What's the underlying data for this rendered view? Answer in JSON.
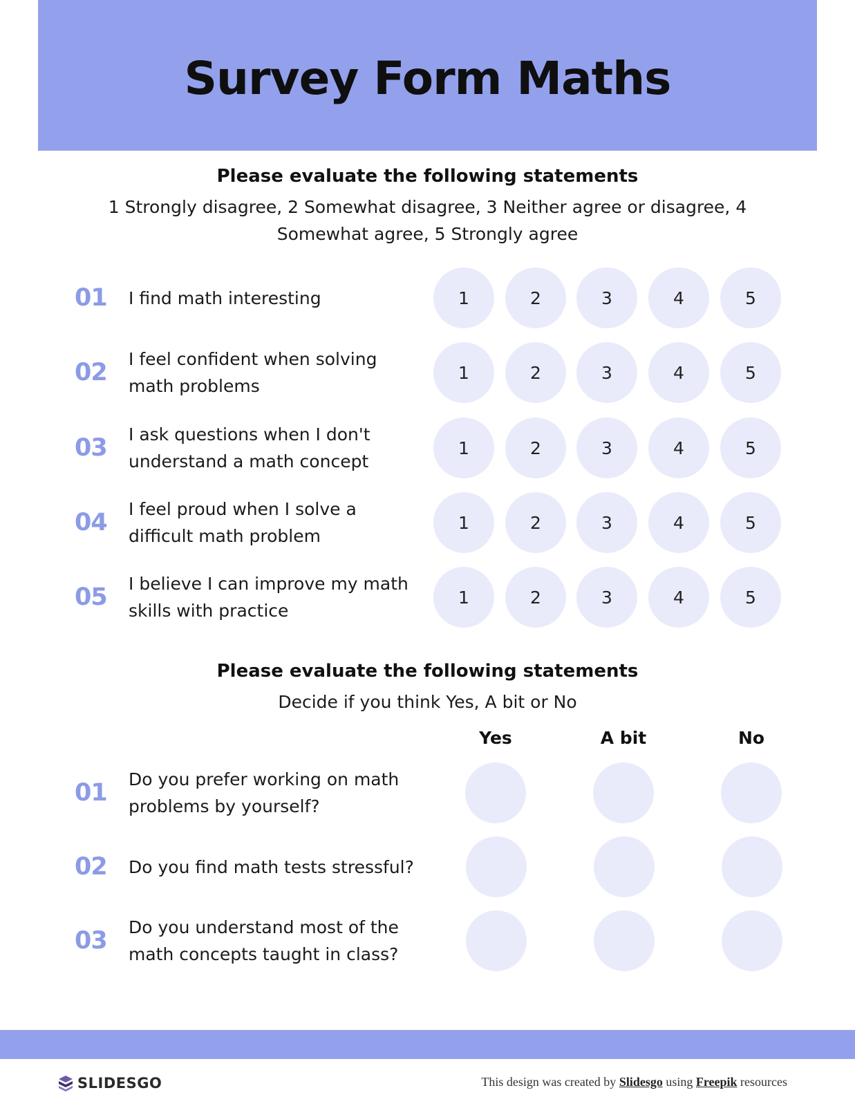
{
  "header": {
    "title": "Survey Form Maths"
  },
  "section1": {
    "heading": "Please evaluate the following statements",
    "description": "1 Strongly disagree, 2 Somewhat disagree, 3 Neither agree or disagree, 4 Somewhat agree, 5 Strongly agree",
    "scale": [
      "1",
      "2",
      "3",
      "4",
      "5"
    ],
    "items": [
      {
        "number": "01",
        "statement": "I find math interesting"
      },
      {
        "number": "02",
        "statement": "I feel confident when solving math problems"
      },
      {
        "number": "03",
        "statement": "I ask questions when I don't understand a math concept"
      },
      {
        "number": "04",
        "statement": "I feel proud when I solve a difficult math problem"
      },
      {
        "number": "05",
        "statement": "I believe I can improve my math skills with practice"
      }
    ]
  },
  "section2": {
    "heading": "Please evaluate the following statements",
    "description": "Decide if you think Yes, A bit or No",
    "columns": [
      "Yes",
      "A bit",
      "No"
    ],
    "items": [
      {
        "number": "01",
        "statement": "Do you prefer working on math problems by yourself?"
      },
      {
        "number": "02",
        "statement": "Do you find math tests stressful?"
      },
      {
        "number": "03",
        "statement": "Do you understand most of the math concepts taught in class?"
      }
    ]
  },
  "footer": {
    "brand": "SLIDESGO",
    "credit_prefix": "This design was created by",
    "credit_link1": "Slidesgo",
    "credit_middle": "using",
    "credit_link2": "Freepik",
    "credit_suffix": "resources"
  },
  "colors": {
    "accent": "#93a1ec",
    "number_color": "#8c9be6",
    "circle_fill": "#e9ebfb"
  }
}
